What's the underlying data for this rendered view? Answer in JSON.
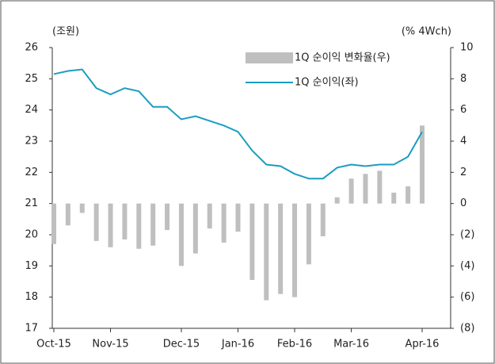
{
  "chart_data": {
    "type": "bar_line",
    "y_label": "(조원)",
    "y2_label": "(% 4Wch)",
    "categories": [
      "Oct-15",
      null,
      null,
      null,
      "Nov-15",
      null,
      null,
      null,
      null,
      "Dec-15",
      null,
      null,
      null,
      "Jan-16",
      null,
      null,
      null,
      "Feb-16",
      null,
      null,
      null,
      "Mar-16",
      null,
      null,
      null,
      null,
      "Apr-16"
    ],
    "series": [
      {
        "name": "1Q 순이익 변화율(우)",
        "type": "bar",
        "axis": "y2",
        "color": "#bfbfbf",
        "values": [
          -2.6,
          -1.4,
          -0.6,
          -2.4,
          -2.8,
          -2.3,
          -2.9,
          -2.7,
          -1.7,
          -4.0,
          -3.2,
          -1.6,
          -2.5,
          -1.8,
          -4.9,
          -6.2,
          -5.8,
          -6.0,
          -3.9,
          -2.1,
          0.4,
          1.6,
          1.9,
          2.1,
          0.7,
          1.1,
          5.0
        ]
      },
      {
        "name": "1Q 순이익(좌)",
        "type": "line",
        "axis": "y",
        "color": "#1b9dc0",
        "values": [
          25.15,
          25.25,
          25.3,
          24.7,
          24.5,
          24.7,
          24.6,
          24.1,
          24.1,
          23.7,
          23.8,
          23.65,
          23.5,
          23.3,
          22.7,
          22.25,
          22.2,
          21.95,
          21.8,
          21.8,
          22.15,
          22.25,
          22.2,
          22.25,
          22.25,
          22.5,
          23.3
        ]
      }
    ],
    "ylim": [
      17,
      26
    ],
    "yticks": [
      17,
      18,
      19,
      20,
      21,
      22,
      23,
      24,
      25,
      26
    ],
    "y2lim": [
      -8,
      10
    ],
    "y2ticks": [
      {
        "value": -8,
        "label": "(8)"
      },
      {
        "value": -6,
        "label": "(6)"
      },
      {
        "value": -4,
        "label": "(4)"
      },
      {
        "value": -2,
        "label": "(2)"
      },
      0,
      2,
      4,
      6,
      8,
      10
    ]
  }
}
